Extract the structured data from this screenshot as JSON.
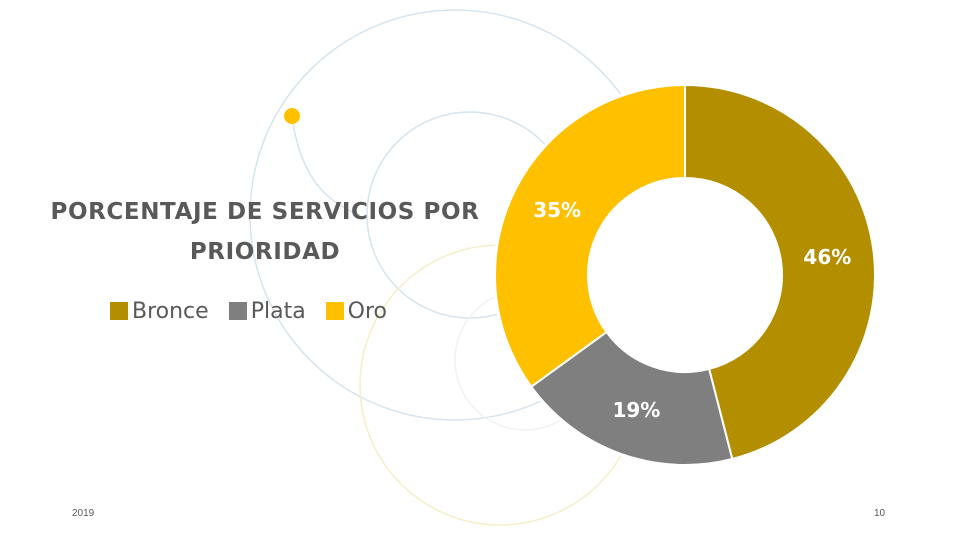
{
  "chart_data": {
    "type": "pie",
    "title": "PORCENTAJE DE SERVICIOS POR PRIORIDAD",
    "legend_position": "below-title",
    "categories": [
      "Bronce",
      "Plata",
      "Oro"
    ],
    "values": [
      46,
      19,
      35
    ],
    "labels": [
      "46%",
      "19%",
      "35%"
    ],
    "colors": [
      "#B38F00",
      "#7F7F7F",
      "#FFC000"
    ]
  },
  "footer": {
    "year": "2019",
    "page_number": "10"
  }
}
